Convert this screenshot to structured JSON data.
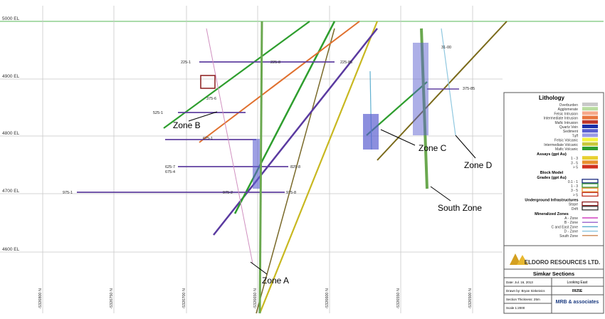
{
  "elevation_labels": [
    "5000 EL",
    "4900 EL",
    "4800 EL",
    "4700 EL",
    "4600 EL"
  ],
  "northing_labels": [
    "-5326800 N",
    "-5326750 N",
    "-5326700 N",
    "-5326650 N",
    "-5326600 N",
    "-5326550 N",
    "-5326500 N"
  ],
  "zone_labels": [
    "Zone B",
    "Zone C",
    "Zone D",
    "South Zone",
    "Zone A"
  ],
  "hole_labels": [
    "225-1",
    "225-8",
    "225-85",
    "525-1",
    "375-6",
    "675-1",
    "625-7",
    "675-4",
    "825-8",
    "975-1",
    "975-8",
    "975-2",
    "375-85",
    "31-00"
  ],
  "legend": {
    "title": "Lithology",
    "lithology": [
      {
        "name": "Overburden",
        "color": "#c8c8c8"
      },
      {
        "name": "Agglomerate",
        "color": "#b9dca0"
      },
      {
        "name": "Felsic Intrusion",
        "color": "#f6a98a"
      },
      {
        "name": "Intermediate Intrusion",
        "color": "#e8763e"
      },
      {
        "name": "Mafic Intrusion",
        "color": "#c0392b"
      },
      {
        "name": "Quartz Vein",
        "color": "#1a2fa8"
      },
      {
        "name": "Sediment",
        "color": "#5b5fd0"
      },
      {
        "name": "Tuff",
        "color": "#9a9ae6"
      },
      {
        "name": "Felsic Volcanic",
        "color": "#f5f540"
      },
      {
        "name": "Intermediate Volcanic",
        "color": "#c8c83a"
      },
      {
        "name": "Mafic Volcanic",
        "color": "#2e9e2e"
      }
    ],
    "assays_title": "Assays (gpt Au)",
    "assays": [
      {
        "name": "1 - 3",
        "color": "#e8d030"
      },
      {
        "name": "3 - 5",
        "color": "#e89030"
      },
      {
        "name": "> 5",
        "color": "#d03020"
      }
    ],
    "block_title": "Block Model",
    "block_subtitle": "Grades (gpt Au)",
    "block": [
      {
        "name": "0.1 - 1",
        "color": "#1a2a80"
      },
      {
        "name": "1 - 3",
        "color": "#3a9a3a"
      },
      {
        "name": "3 - 5",
        "color": "#e89030"
      },
      {
        "name": "> 5",
        "color": "#c03020"
      }
    ],
    "infra_title": "Underground Infrastructures",
    "infra": [
      {
        "name": "Stope",
        "color": "#8b1a1a"
      },
      {
        "name": "Drift",
        "color": "#333333"
      }
    ],
    "zones_title": "Mineralized Zones",
    "zones": [
      {
        "name": "A - Zone",
        "color": "#d040c0"
      },
      {
        "name": "B - Zone",
        "color": "#a070d0"
      },
      {
        "name": "C and East Zone",
        "color": "#60b0d0"
      },
      {
        "name": "D - Zone",
        "color": "#90c8e0"
      },
      {
        "name": "South Zone",
        "color": "#d09060"
      }
    ]
  },
  "title_block": {
    "company": "ELDORO RESOURCES LTD.",
    "project": "Simkar Sections",
    "date": "Date: Jul. 16, 2013",
    "view": "Looking East",
    "drawn": "Drawn by: Bryan Sinkeivics",
    "section": "0925E",
    "thickness": "Section Thickness: 25m",
    "scale": "Scale 1:2000",
    "consultant": "MRB & associates"
  }
}
